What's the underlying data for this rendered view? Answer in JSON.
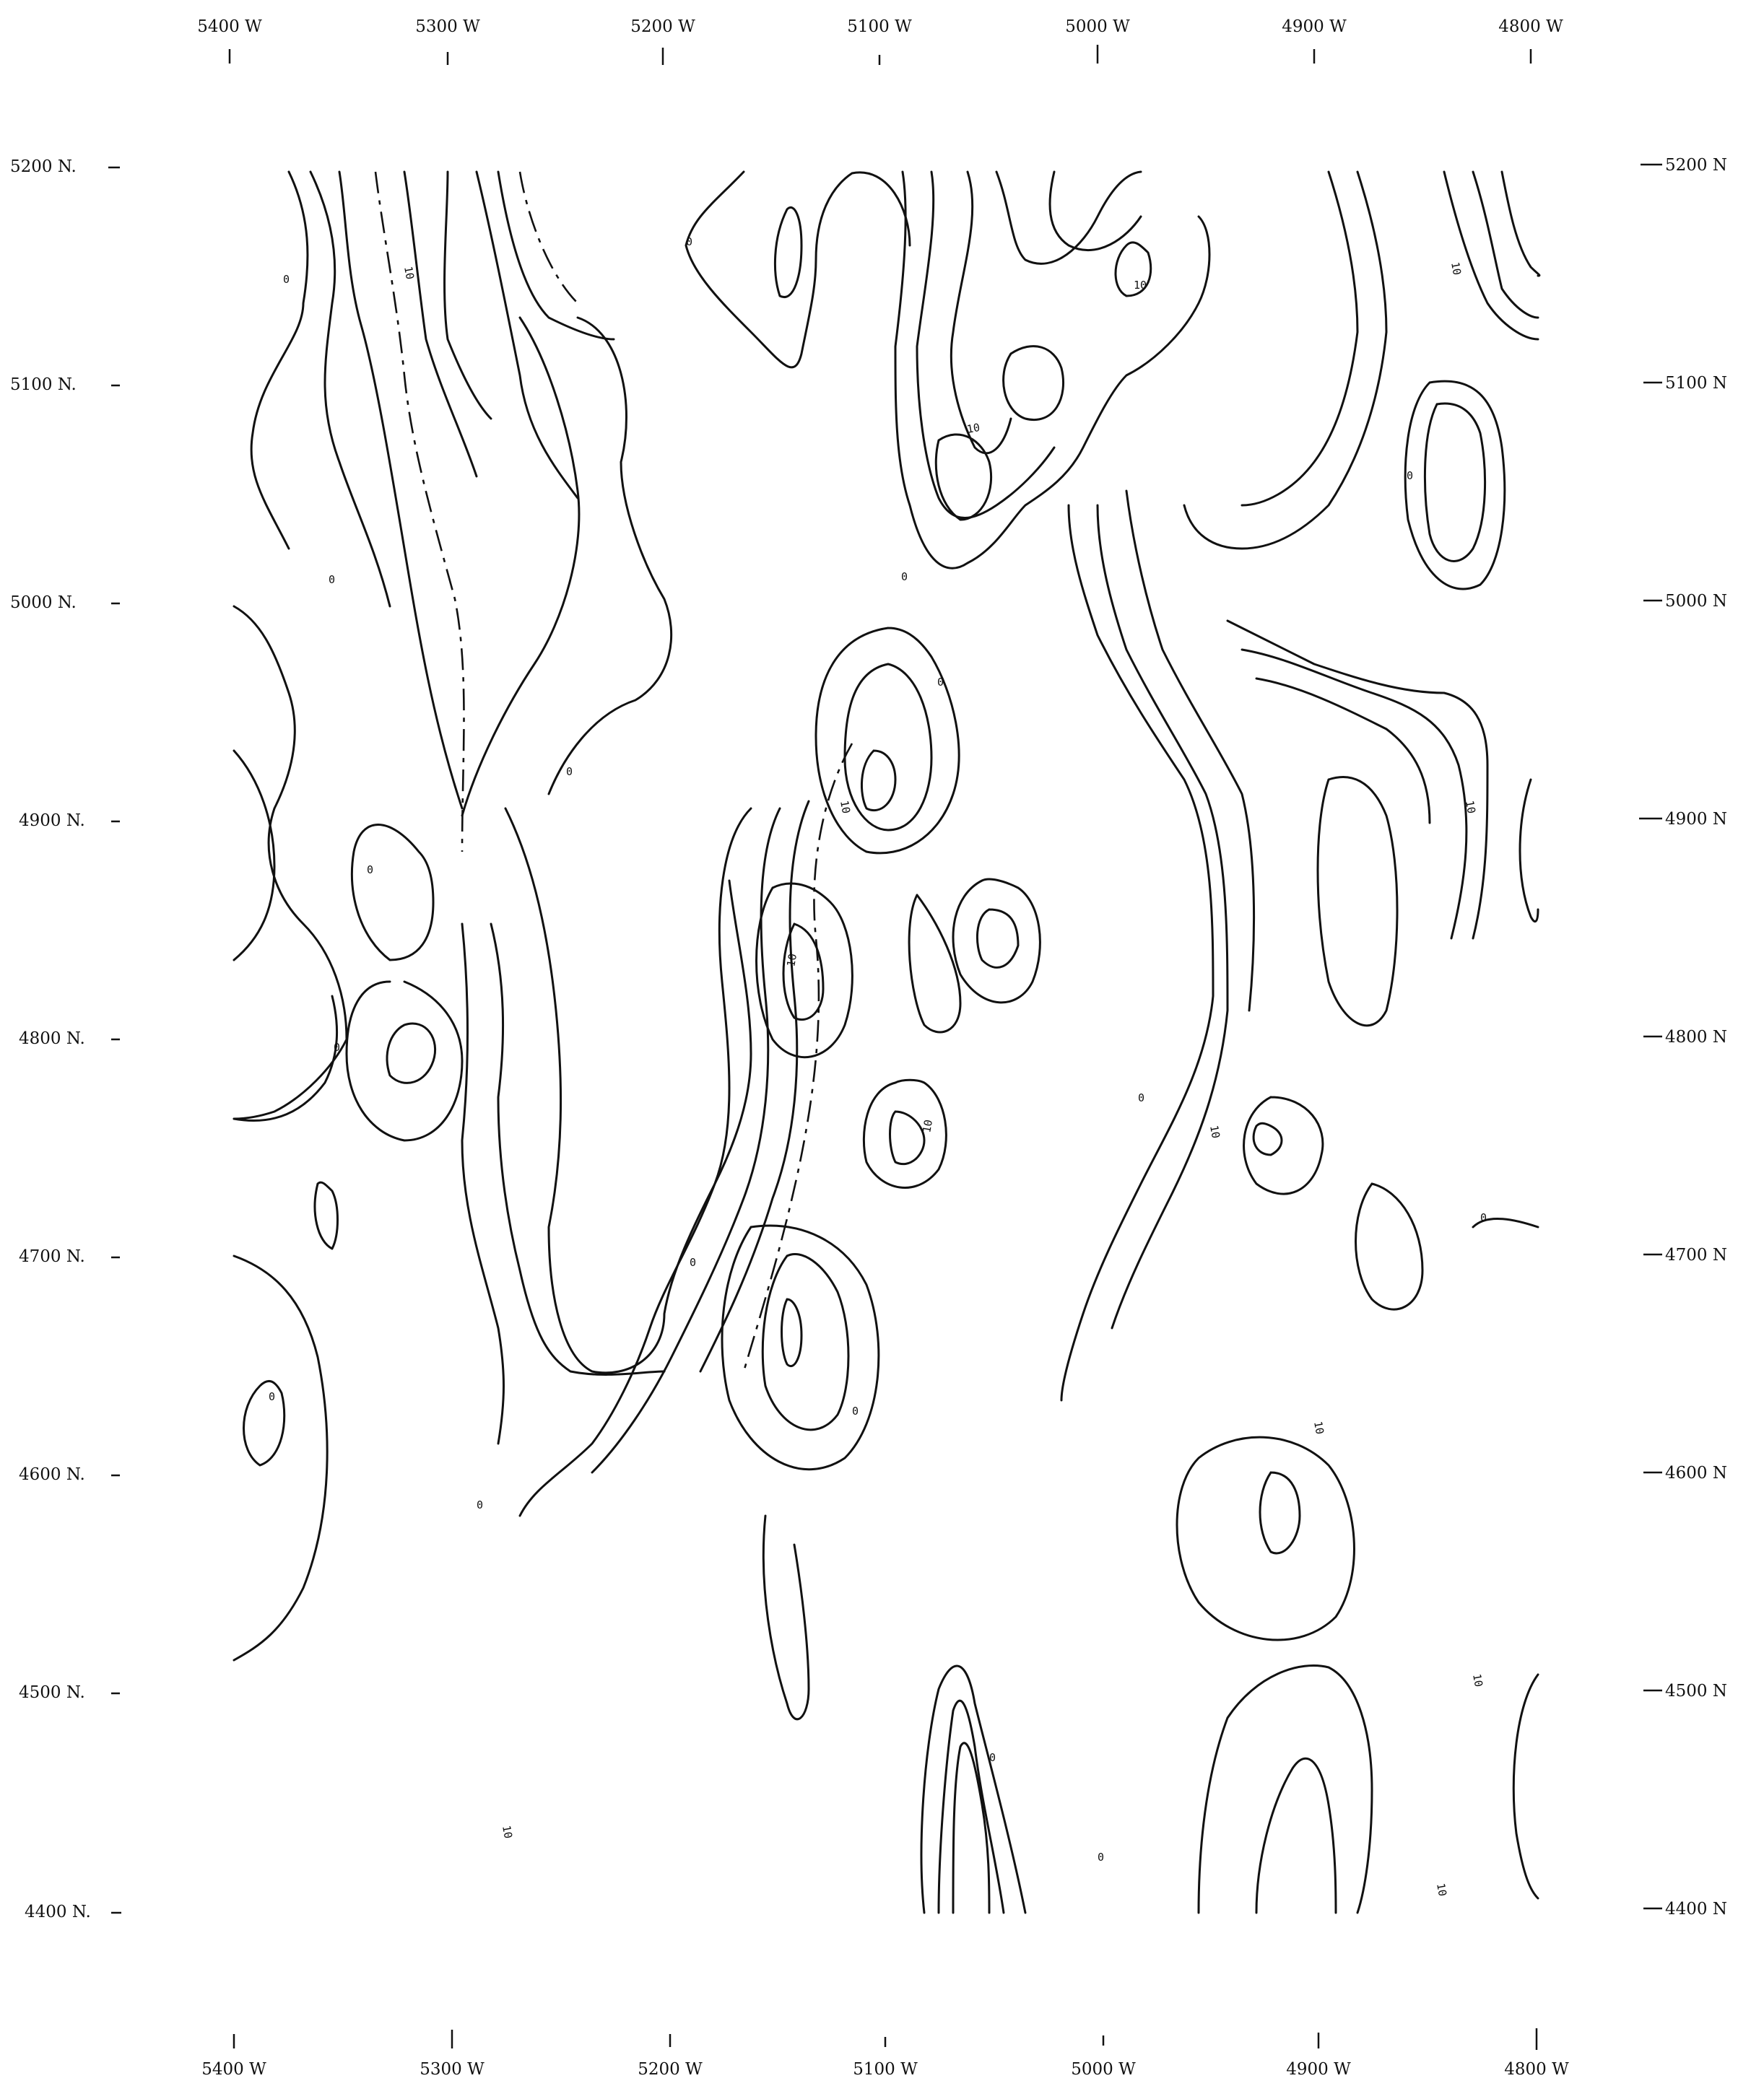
{
  "map": {
    "top_axis": [
      "5400 W",
      "5300 W",
      "5200 W",
      "5100 W",
      "5000 W",
      "4900 W",
      "4800 W"
    ],
    "bottom_axis": [
      "5400 W",
      "5300 W",
      "5200 W",
      "5100 W",
      "5000 W",
      "4900 W",
      "4800 W"
    ],
    "left_axis": [
      "5200 N.",
      "5100 N.",
      "5000 N.",
      "4900 N.",
      "4800 N.",
      "4700 N.",
      "4600 N.",
      "4500 N.",
      "4400 N."
    ],
    "right_axis": [
      "5200 N",
      "5100 N",
      "5000 N",
      "4900 N",
      "4800 N",
      "4700 N",
      "4600 N",
      "4500 N",
      "4400 N"
    ],
    "contour_labels": {
      "zero": "0",
      "ten": "10"
    }
  }
}
